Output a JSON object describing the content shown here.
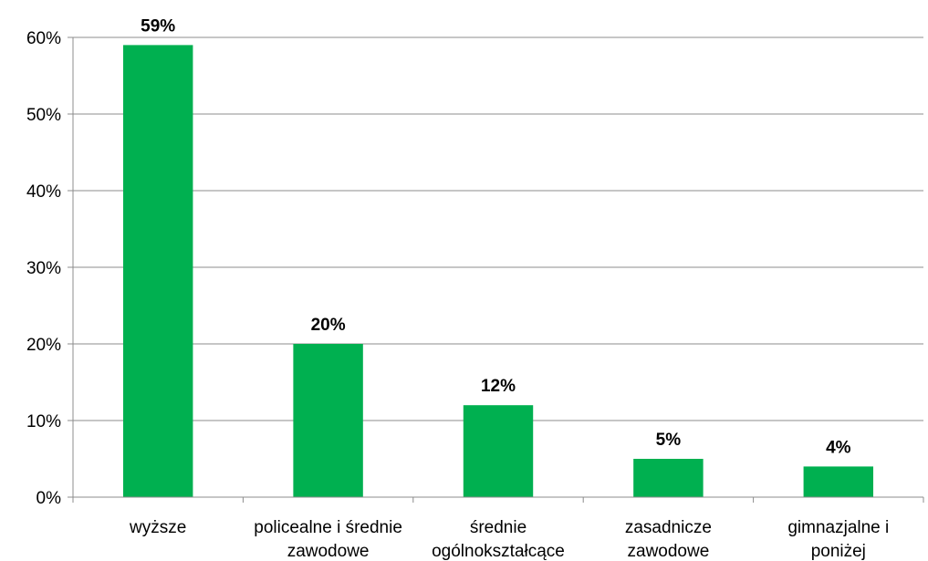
{
  "chart_data": {
    "type": "bar",
    "categories": [
      [
        "wyższe"
      ],
      [
        "policealne i średnie",
        "zawodowe"
      ],
      [
        "średnie",
        "ogólnokształcące"
      ],
      [
        "zasadnicze",
        "zawodowe"
      ],
      [
        "gimnazjalne i",
        "poniżej"
      ]
    ],
    "values": [
      59,
      20,
      12,
      5,
      4
    ],
    "data_labels": [
      "59%",
      "20%",
      "12%",
      "5%",
      "4%"
    ],
    "y_ticks": [
      0,
      10,
      20,
      30,
      40,
      50,
      60
    ],
    "y_tick_labels": [
      "0%",
      "10%",
      "20%",
      "30%",
      "40%",
      "50%",
      "60%"
    ],
    "ylim": [
      0,
      60
    ],
    "grid": true,
    "legend": "none",
    "bar_color": "#00b050",
    "title": "",
    "xlabel": "",
    "ylabel": ""
  }
}
